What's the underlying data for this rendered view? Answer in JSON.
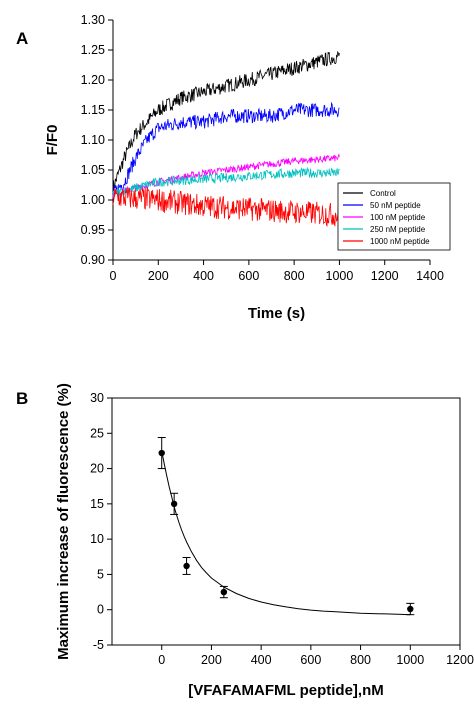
{
  "chart_data": [
    {
      "panel": "A",
      "type": "line",
      "xlabel": "Time (s)",
      "ylabel": "F/F0",
      "xlim": [
        0,
        1400
      ],
      "ylim": [
        0.9,
        1.3
      ],
      "xticks": [
        0,
        200,
        400,
        600,
        800,
        1000,
        1200,
        1400
      ],
      "yticks": [
        "0.90",
        "0.95",
        "1.00",
        "1.05",
        "1.10",
        "1.15",
        "1.20",
        "1.25",
        "1.30"
      ],
      "grid": false,
      "legend_position": "bottom-right",
      "series": [
        {
          "name": "Control",
          "color": "#000000",
          "x": [
            0,
            50,
            100,
            150,
            200,
            300,
            400,
            500,
            600,
            700,
            800,
            900,
            1000
          ],
          "y": [
            1.02,
            1.07,
            1.11,
            1.13,
            1.15,
            1.17,
            1.18,
            1.19,
            1.2,
            1.21,
            1.22,
            1.23,
            1.24
          ],
          "noise": 0.012
        },
        {
          "name": "50 nM  peptide",
          "color": "#0000ff",
          "x": [
            0,
            50,
            100,
            150,
            200,
            300,
            400,
            500,
            600,
            700,
            800,
            900,
            1000
          ],
          "y": [
            1.01,
            1.03,
            1.07,
            1.1,
            1.12,
            1.13,
            1.13,
            1.14,
            1.14,
            1.14,
            1.15,
            1.15,
            1.15
          ],
          "noise": 0.012
        },
        {
          "name": "100 nM  peptide",
          "color": "#ff00ff",
          "x": [
            0,
            200,
            400,
            600,
            800,
            1000
          ],
          "y": [
            1.01,
            1.03,
            1.045,
            1.055,
            1.065,
            1.07
          ],
          "noise": 0.006
        },
        {
          "name": "250 nM  peptide",
          "color": "#00c0c0",
          "x": [
            0,
            200,
            400,
            600,
            800,
            1000
          ],
          "y": [
            1.01,
            1.03,
            1.035,
            1.04,
            1.045,
            1.045
          ],
          "noise": 0.008
        },
        {
          "name": "1000 nM  peptide",
          "color": "#ff0000",
          "x": [
            0,
            200,
            400,
            600,
            800,
            1000
          ],
          "y": [
            1.005,
            1.0,
            0.99,
            0.985,
            0.98,
            0.975
          ],
          "noise": 0.02
        }
      ]
    },
    {
      "panel": "B",
      "type": "scatter",
      "xlabel": "[VFAFAMAFML peptide],nM",
      "ylabel": "Maximum increase of fluorescence (%)",
      "xlim": [
        -200,
        1200
      ],
      "ylim": [
        -5,
        30
      ],
      "xticks": [
        0,
        200,
        400,
        600,
        800,
        1000,
        1200
      ],
      "yticks": [
        -5,
        0,
        5,
        10,
        15,
        20,
        25,
        30
      ],
      "grid": false,
      "points": [
        {
          "x": 0,
          "y": 22.2,
          "err": 2.2
        },
        {
          "x": 50,
          "y": 15.0,
          "err": 1.5
        },
        {
          "x": 100,
          "y": 6.2,
          "err": 1.2
        },
        {
          "x": 250,
          "y": 2.5,
          "err": 0.8
        },
        {
          "x": 1000,
          "y": 0.1,
          "err": 0.8
        }
      ],
      "fit": {
        "x": [
          0,
          10,
          20,
          30,
          40,
          50,
          60,
          70,
          80,
          90,
          100,
          120,
          140,
          160,
          180,
          200,
          250,
          300,
          350,
          400,
          450,
          500,
          550,
          600,
          650,
          700,
          750,
          800,
          850,
          900,
          950,
          1000
        ],
        "y": [
          22.5,
          20.7,
          19.0,
          17.4,
          16.0,
          14.6,
          13.4,
          12.3,
          11.3,
          10.4,
          9.6,
          8.2,
          7.0,
          6.0,
          5.2,
          4.5,
          3.2,
          2.3,
          1.6,
          1.1,
          0.7,
          0.4,
          0.15,
          -0.05,
          -0.2,
          -0.3,
          -0.4,
          -0.5,
          -0.55,
          -0.6,
          -0.65,
          -0.7
        ]
      }
    }
  ],
  "panels": {
    "a_label": "A",
    "b_label": "B"
  }
}
